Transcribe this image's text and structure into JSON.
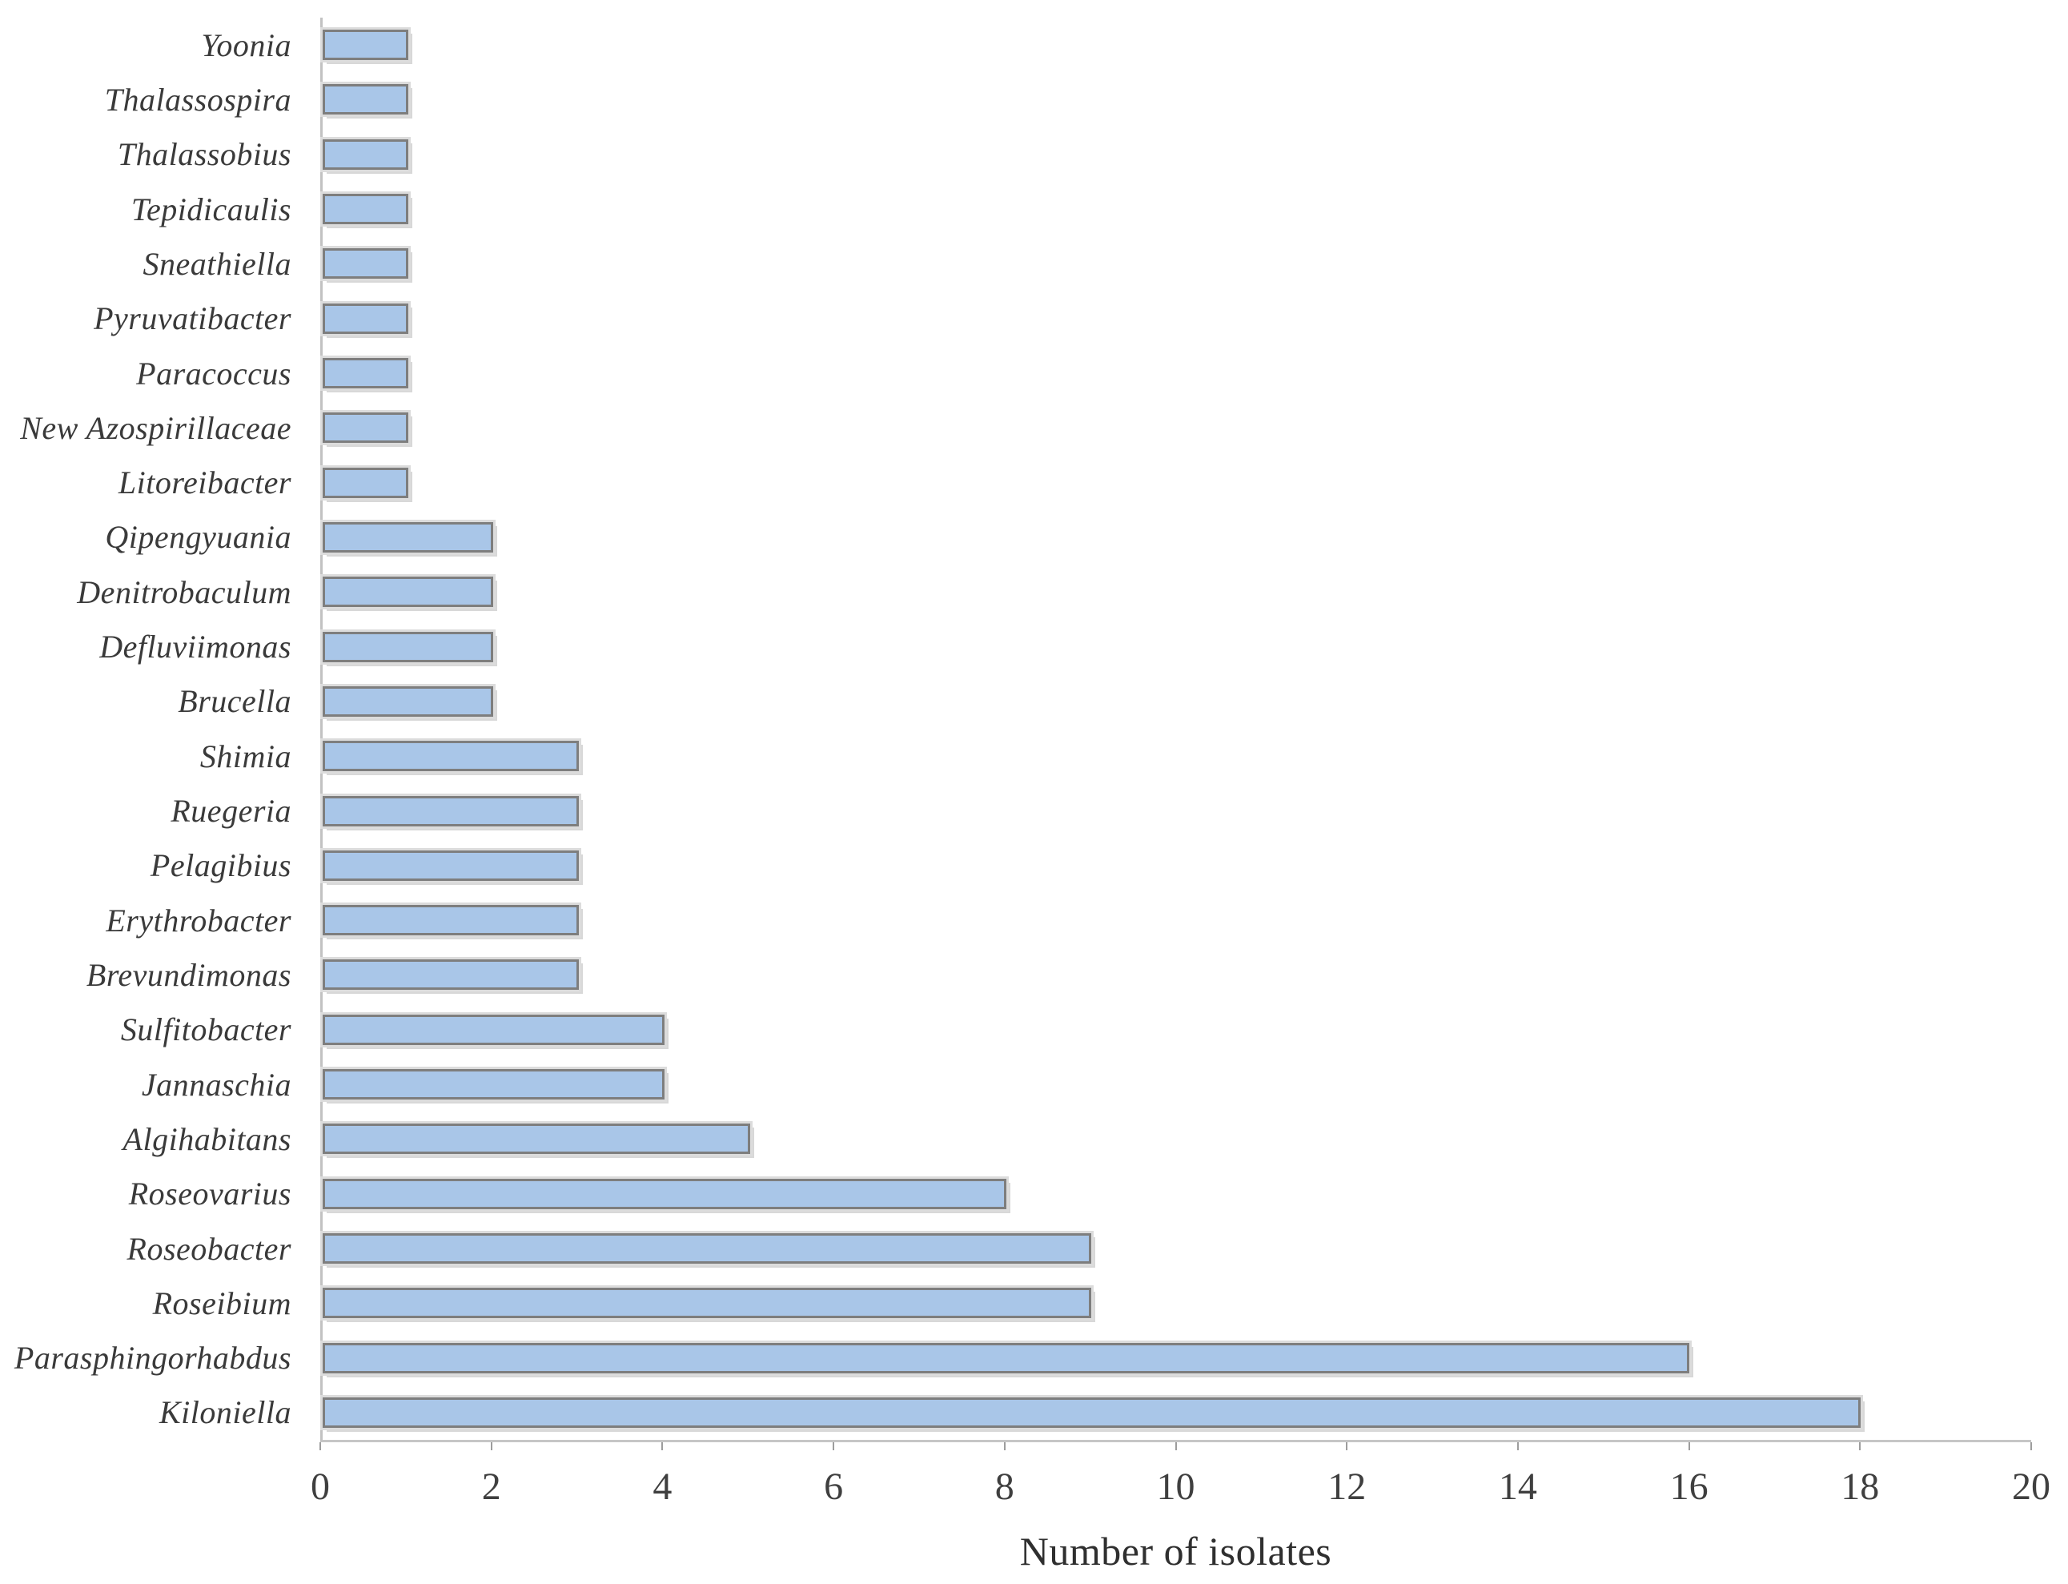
{
  "chart_data": {
    "type": "bar",
    "orientation": "horizontal",
    "title": "",
    "xlabel": "Number of isolates",
    "ylabel": "",
    "categories": [
      "Yoonia",
      "Thalassospira",
      "Thalassobius",
      "Tepidicaulis",
      "Sneathiella",
      "Pyruvatibacter",
      "Paracoccus",
      "New Azospirillaceae",
      "Litoreibacter",
      "Qipengyuania",
      "Denitrobaculum",
      "Defluviimonas",
      "Brucella",
      "Shimia",
      "Ruegeria",
      "Pelagibius",
      "Erythrobacter",
      "Brevundimonas",
      "Sulfitobacter",
      "Jannaschia",
      "Algihabitans",
      "Roseovarius",
      "Roseobacter",
      "Roseibium",
      "Parasphingorhabdus",
      "Kiloniella"
    ],
    "values": [
      1,
      1,
      1,
      1,
      1,
      1,
      1,
      1,
      1,
      2,
      2,
      2,
      2,
      3,
      3,
      3,
      3,
      3,
      4,
      4,
      5,
      8,
      9,
      9,
      16,
      18
    ],
    "xlim": [
      0,
      20
    ],
    "x_ticks": [
      0,
      2,
      4,
      6,
      8,
      10,
      12,
      14,
      16,
      18,
      20
    ],
    "grid": false,
    "legend": "none",
    "bar_color": "#a9c6e8",
    "bar_border_color": "#7e7e7e",
    "bar_shadow_color": "#d8d8d8",
    "axis_line_color": "#c4c4c4",
    "text_color": "#3a3a3a"
  }
}
